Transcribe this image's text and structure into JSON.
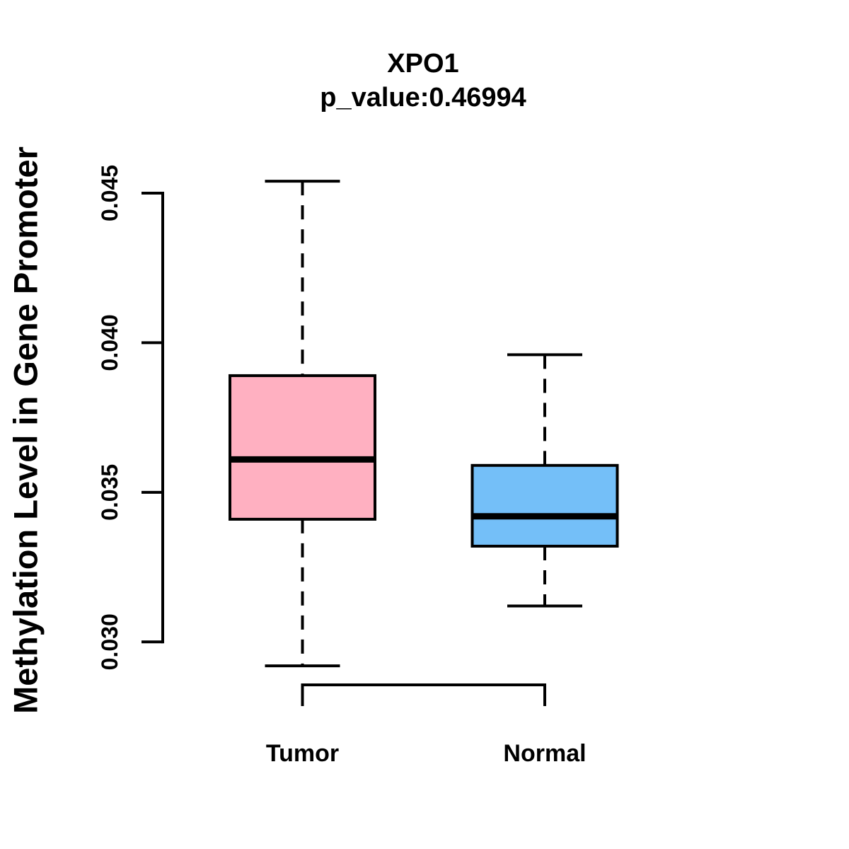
{
  "title": {
    "gene": "XPO1",
    "p_value": "p_value:0.46994"
  },
  "chart_data": {
    "type": "boxplot",
    "title": "XPO1",
    "subtitle": "p_value:0.46994",
    "ylabel": "Methylation Level in Gene Promoter",
    "xlabel": "",
    "ylim": [
      0.0285,
      0.0455
    ],
    "grid": false,
    "yticks": [
      {
        "label": "0.030",
        "value": 0.03
      },
      {
        "label": "0.035",
        "value": 0.035
      },
      {
        "label": "0.040",
        "value": 0.04
      },
      {
        "label": "0.045",
        "value": 0.045
      }
    ],
    "whisker_style": "dashed",
    "stroke_color": "#000000",
    "groups": [
      {
        "label": "Tumor",
        "fill_color": "#FFB0C1",
        "stats": {
          "min": 0.0292,
          "q1": 0.0341,
          "median": 0.0361,
          "q3": 0.0389,
          "max": 0.0454
        }
      },
      {
        "label": "Normal",
        "fill_color": "#74BFF8",
        "stats": {
          "min": 0.0312,
          "q1": 0.0332,
          "median": 0.0342,
          "q3": 0.0359,
          "max": 0.0396
        }
      }
    ]
  }
}
